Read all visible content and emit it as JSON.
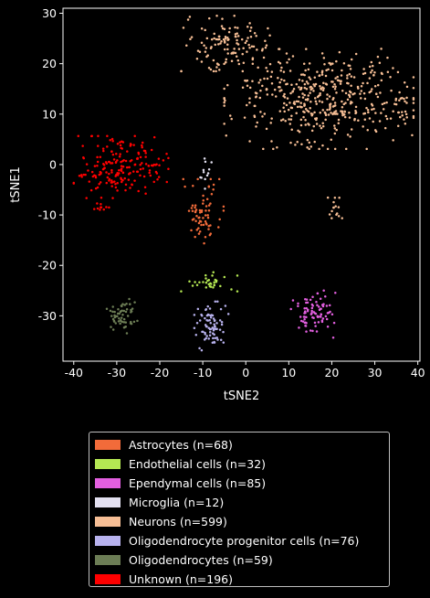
{
  "chart_data": {
    "type": "scatter",
    "xlabel": "tSNE2",
    "ylabel": "tSNE1",
    "xlim": [
      -42.5,
      40.5
    ],
    "ylim": [
      -39,
      31
    ],
    "xticks": [
      -40,
      -30,
      -20,
      -10,
      0,
      10,
      20,
      30,
      40
    ],
    "yticks": [
      -30,
      -20,
      -10,
      0,
      10,
      20,
      30
    ],
    "legend_position": "below",
    "series": [
      {
        "name": "Astrocytes (n=68)",
        "color": "#f26b3a",
        "clusters": [
          {
            "center": [
              -10,
              -9.5
            ],
            "spread": [
              2.2,
              3.0
            ],
            "n": 68
          }
        ]
      },
      {
        "name": "Endothelial cells (n=32)",
        "color": "#b5e853",
        "clusters": [
          {
            "center": [
              -9,
              -23.5
            ],
            "spread": [
              3.2,
              1.1
            ],
            "n": 32
          }
        ]
      },
      {
        "name": "Ependymal cells (n=85)",
        "color": "#e35fe0",
        "clusters": [
          {
            "center": [
              16,
              -29.5
            ],
            "spread": [
              2.5,
              2.2
            ],
            "n": 85
          }
        ]
      },
      {
        "name": "Microglia (n=12)",
        "color": "#e3e0f0",
        "clusters": [
          {
            "center": [
              -9,
              -1.5
            ],
            "spread": [
              0.7,
              1.5
            ],
            "n": 12
          }
        ]
      },
      {
        "name": "Neurons (n=599)",
        "color": "#f6be95",
        "clusters": [
          {
            "center": [
              -4,
              24
            ],
            "spread": [
              5.0,
              2.5
            ],
            "n": 120
          },
          {
            "center": [
              17,
              13
            ],
            "spread": [
              10.0,
              4.5
            ],
            "n": 430
          },
          {
            "center": [
              35,
              11
            ],
            "spread": [
              1.5,
              2.0
            ],
            "n": 20
          },
          {
            "center": [
              31,
              19
            ],
            "spread": [
              1.5,
              2.0
            ],
            "n": 14
          },
          {
            "center": [
              21,
              -8
            ],
            "spread": [
              0.9,
              1.2
            ],
            "n": 15
          }
        ]
      },
      {
        "name": "Oligodendrocyte progenitor cells (n=76)",
        "color": "#b8b2ee",
        "clusters": [
          {
            "center": [
              -8,
              -32
            ],
            "spread": [
              1.8,
              2.2
            ],
            "n": 76
          }
        ]
      },
      {
        "name": "Oligodendrocytes (n=59)",
        "color": "#6c7d55",
        "clusters": [
          {
            "center": [
              -29,
              -30
            ],
            "spread": [
              1.8,
              1.6
            ],
            "n": 59
          }
        ]
      },
      {
        "name": "Unknown (n=196)",
        "color": "#ff0000",
        "clusters": [
          {
            "center": [
              -29,
              -0.5
            ],
            "spread": [
              5.0,
              2.8
            ],
            "n": 186
          },
          {
            "center": [
              -34,
              -8.5
            ],
            "spread": [
              1.0,
              0.4
            ],
            "n": 10
          }
        ]
      }
    ]
  }
}
